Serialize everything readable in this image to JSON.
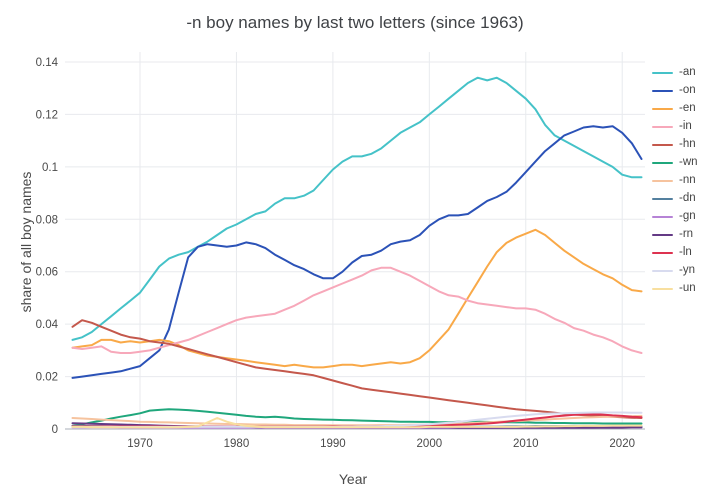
{
  "title": "-n boy names by last two letters (since 1963)",
  "chart_data": {
    "type": "line",
    "title": "-n boy names by last two letters (since 1963)",
    "xlabel": "Year",
    "ylabel": "share of all boy names",
    "xlim": [
      1963,
      2022
    ],
    "ylim": [
      0,
      0.14
    ],
    "start_year": 1963,
    "grid": true,
    "legend_position": "right",
    "background": "#ffffff",
    "grid_color": "#e8eaee",
    "zeroline_color": "#d4d7dc",
    "tick_color": "#4a4a4a",
    "x_ticks": [
      {
        "v": 1970,
        "label": "1970"
      },
      {
        "v": 1980,
        "label": "1980"
      },
      {
        "v": 1990,
        "label": "1990"
      },
      {
        "v": 2000,
        "label": "2000"
      },
      {
        "v": 2010,
        "label": "2010"
      },
      {
        "v": 2020,
        "label": "2020"
      }
    ],
    "y_ticks": [
      {
        "v": 0,
        "label": "0"
      },
      {
        "v": 0.02,
        "label": "0.02"
      },
      {
        "v": 0.04,
        "label": "0.04"
      },
      {
        "v": 0.06,
        "label": "0.06"
      },
      {
        "v": 0.08,
        "label": "0.08"
      },
      {
        "v": 0.1,
        "label": "0.1"
      },
      {
        "v": 0.12,
        "label": "0.12"
      },
      {
        "v": 0.14,
        "label": "0.14"
      }
    ],
    "series": [
      {
        "name": "-an",
        "color": "#45c2c8",
        "values": [
          0.034,
          0.035,
          0.037,
          0.04,
          0.043,
          0.046,
          0.049,
          0.052,
          0.057,
          0.062,
          0.065,
          0.0665,
          0.0675,
          0.0695,
          0.0715,
          0.074,
          0.0765,
          0.078,
          0.08,
          0.082,
          0.083,
          0.086,
          0.088,
          0.088,
          0.089,
          0.091,
          0.095,
          0.099,
          0.102,
          0.104,
          0.104,
          0.105,
          0.107,
          0.11,
          0.113,
          0.115,
          0.117,
          0.12,
          0.123,
          0.126,
          0.129,
          0.132,
          0.134,
          0.133,
          0.134,
          0.132,
          0.129,
          0.126,
          0.122,
          0.116,
          0.112,
          0.11,
          0.108,
          0.106,
          0.104,
          0.102,
          0.1,
          0.097,
          0.096,
          0.096
        ]
      },
      {
        "name": "-on",
        "color": "#2b52b7",
        "values": [
          0.0195,
          0.02,
          0.0205,
          0.021,
          0.0215,
          0.022,
          0.023,
          0.024,
          0.027,
          0.03,
          0.038,
          0.052,
          0.0655,
          0.0695,
          0.0705,
          0.07,
          0.0695,
          0.07,
          0.0712,
          0.0705,
          0.069,
          0.0665,
          0.0645,
          0.0625,
          0.061,
          0.059,
          0.0575,
          0.0575,
          0.06,
          0.0635,
          0.066,
          0.0665,
          0.068,
          0.0705,
          0.0715,
          0.072,
          0.074,
          0.0775,
          0.08,
          0.0815,
          0.0815,
          0.082,
          0.0845,
          0.087,
          0.0885,
          0.0905,
          0.094,
          0.098,
          0.102,
          0.106,
          0.109,
          0.112,
          0.1135,
          0.115,
          0.1155,
          0.115,
          0.1155,
          0.113,
          0.109,
          0.103
        ]
      },
      {
        "name": "-en",
        "color": "#f9a948",
        "values": [
          0.031,
          0.0315,
          0.032,
          0.034,
          0.034,
          0.033,
          0.0335,
          0.033,
          0.0335,
          0.034,
          0.0335,
          0.032,
          0.03,
          0.029,
          0.028,
          0.0275,
          0.027,
          0.0265,
          0.026,
          0.0255,
          0.025,
          0.0245,
          0.024,
          0.0245,
          0.024,
          0.0235,
          0.0235,
          0.024,
          0.0245,
          0.0245,
          0.024,
          0.0245,
          0.025,
          0.0255,
          0.025,
          0.0255,
          0.027,
          0.03,
          0.034,
          0.038,
          0.044,
          0.05,
          0.056,
          0.062,
          0.0675,
          0.071,
          0.073,
          0.0745,
          0.076,
          0.074,
          0.071,
          0.068,
          0.0655,
          0.063,
          0.061,
          0.059,
          0.0575,
          0.055,
          0.053,
          0.0525
        ]
      },
      {
        "name": "-in",
        "color": "#f7a8ba",
        "values": [
          0.031,
          0.0305,
          0.031,
          0.0315,
          0.0295,
          0.029,
          0.029,
          0.0295,
          0.03,
          0.031,
          0.032,
          0.033,
          0.034,
          0.0355,
          0.037,
          0.0385,
          0.04,
          0.0415,
          0.0425,
          0.043,
          0.0435,
          0.044,
          0.0455,
          0.047,
          0.049,
          0.051,
          0.0525,
          0.054,
          0.0555,
          0.057,
          0.0585,
          0.0605,
          0.0615,
          0.0615,
          0.06,
          0.0585,
          0.0565,
          0.0545,
          0.0525,
          0.051,
          0.0505,
          0.049,
          0.048,
          0.0475,
          0.047,
          0.0465,
          0.046,
          0.046,
          0.0455,
          0.044,
          0.042,
          0.0405,
          0.0385,
          0.0375,
          0.036,
          0.035,
          0.0335,
          0.0315,
          0.03,
          0.029
        ]
      },
      {
        "name": "-hn",
        "color": "#c4584c",
        "values": [
          0.039,
          0.0415,
          0.0405,
          0.039,
          0.0375,
          0.036,
          0.035,
          0.0345,
          0.0335,
          0.033,
          0.0325,
          0.0315,
          0.0305,
          0.0295,
          0.0285,
          0.0275,
          0.0265,
          0.0255,
          0.0245,
          0.0235,
          0.023,
          0.0225,
          0.022,
          0.0215,
          0.021,
          0.0205,
          0.0195,
          0.0185,
          0.0175,
          0.0165,
          0.0155,
          0.015,
          0.0145,
          0.014,
          0.0135,
          0.013,
          0.0125,
          0.012,
          0.0115,
          0.011,
          0.0105,
          0.01,
          0.0095,
          0.009,
          0.0085,
          0.008,
          0.0075,
          0.0072,
          0.0069,
          0.0066,
          0.0062,
          0.0058,
          0.0055,
          0.0053,
          0.0051,
          0.0049,
          0.0047,
          0.0045,
          0.0043,
          0.0042
        ]
      },
      {
        "name": "-wn",
        "color": "#1fa77c",
        "values": [
          0.0012,
          0.0018,
          0.0025,
          0.0032,
          0.004,
          0.0047,
          0.0053,
          0.006,
          0.007,
          0.0073,
          0.0075,
          0.0074,
          0.0072,
          0.0069,
          0.0066,
          0.0062,
          0.0058,
          0.0054,
          0.005,
          0.0047,
          0.0045,
          0.0047,
          0.0044,
          0.004,
          0.0038,
          0.0037,
          0.0036,
          0.0035,
          0.0034,
          0.0033,
          0.0032,
          0.0031,
          0.003,
          0.0029,
          0.0028,
          0.0028,
          0.0027,
          0.0027,
          0.0026,
          0.0026,
          0.0028,
          0.0029,
          0.0028,
          0.0027,
          0.0026,
          0.0026,
          0.0025,
          0.0025,
          0.0024,
          0.0024,
          0.0023,
          0.0023,
          0.0022,
          0.0022,
          0.0022,
          0.0021,
          0.0021,
          0.0021,
          0.0021,
          0.0021
        ]
      },
      {
        "name": "-nn",
        "color": "#f6c39e",
        "values": [
          0.0042,
          0.004,
          0.0038,
          0.0036,
          0.0034,
          0.0032,
          0.003,
          0.0028,
          0.0027,
          0.0026,
          0.0025,
          0.0024,
          0.0023,
          0.0022,
          0.0021,
          0.002,
          0.0019,
          0.0019,
          0.0018,
          0.0017,
          0.0017,
          0.0016,
          0.0016,
          0.0015,
          0.0015,
          0.0015,
          0.0015,
          0.0014,
          0.0014,
          0.0014,
          0.0014,
          0.0014,
          0.0015,
          0.0015,
          0.0015,
          0.0016,
          0.0016,
          0.0017,
          0.0018,
          0.0019,
          0.002,
          0.0022,
          0.0024,
          0.0026,
          0.0027,
          0.0029,
          0.003,
          0.0032,
          0.0034,
          0.0036,
          0.0038,
          0.004,
          0.0042,
          0.0044,
          0.0045,
          0.0046,
          0.0047,
          0.0048,
          0.0049,
          0.005
        ]
      },
      {
        "name": "-dn",
        "color": "#54809f",
        "values": [
          0.0012,
          0.0012,
          0.0011,
          0.0011,
          0.001,
          0.001,
          0.001,
          0.001,
          0.0009,
          0.0009,
          0.0009,
          0.0009,
          0.0009,
          0.0009,
          0.0008,
          0.0008,
          0.0008,
          0.0008,
          0.0008,
          0.0008,
          0.0008,
          0.0008,
          0.0008,
          0.0008,
          0.0008,
          0.0008,
          0.0008,
          0.0008,
          0.0008,
          0.0008,
          0.0008,
          0.0008,
          0.0008,
          0.0008,
          0.0008,
          0.0008,
          0.0008,
          0.0008,
          0.0008,
          0.0008,
          0.0008,
          0.0008,
          0.0009,
          0.0009,
          0.0009,
          0.001,
          0.001,
          0.001,
          0.0011,
          0.0011,
          0.0011,
          0.0011,
          0.0011,
          0.001,
          0.001,
          0.001,
          0.001,
          0.001,
          0.001,
          0.001
        ]
      },
      {
        "name": "-gn",
        "color": "#b683d6",
        "values": [
          0.0006,
          0.0006,
          0.0006,
          0.0006,
          0.0006,
          0.0005,
          0.0005,
          0.0005,
          0.0005,
          0.0005,
          0.0005,
          0.0005,
          0.0005,
          0.0005,
          0.0005,
          0.0005,
          0.0005,
          0.0005,
          0.0005,
          0.0005,
          0.0004,
          0.0004,
          0.0004,
          0.0004,
          0.0004,
          0.0004,
          0.0004,
          0.0004,
          0.0004,
          0.0004,
          0.0004,
          0.0004,
          0.0004,
          0.0004,
          0.0004,
          0.0004,
          0.0004,
          0.0004,
          0.0004,
          0.0004,
          0.0004,
          0.0004,
          0.0004,
          0.0004,
          0.0004,
          0.0005,
          0.0005,
          0.0005,
          0.0005,
          0.0005,
          0.0005,
          0.0005,
          0.0005,
          0.0005,
          0.0005,
          0.0006,
          0.0006,
          0.0006,
          0.0006,
          0.0006
        ]
      },
      {
        "name": "-rn",
        "color": "#643a85",
        "values": [
          0.0022,
          0.0021,
          0.002,
          0.0019,
          0.0018,
          0.0017,
          0.0016,
          0.0015,
          0.0014,
          0.0013,
          0.0012,
          0.0011,
          0.001,
          0.001,
          0.0009,
          0.0009,
          0.0008,
          0.0008,
          0.0008,
          0.0007,
          0.0007,
          0.0007,
          0.0007,
          0.0007,
          0.0007,
          0.0007,
          0.0007,
          0.0007,
          0.0007,
          0.0007,
          0.0006,
          0.0006,
          0.0006,
          0.0006,
          0.0006,
          0.0006,
          0.0006,
          0.0006,
          0.0006,
          0.0006,
          0.0005,
          0.0005,
          0.0005,
          0.0005,
          0.0005,
          0.0005,
          0.0005,
          0.0005,
          0.0005,
          0.0005,
          0.0005,
          0.0005,
          0.0005,
          0.0005,
          0.0005,
          0.0005,
          0.0005,
          0.0005,
          0.0006,
          0.0006
        ]
      },
      {
        "name": "-ln",
        "color": "#dd3250",
        "values": [
          0.001,
          0.001,
          0.001,
          0.001,
          0.001,
          0.001,
          0.001,
          0.001,
          0.001,
          0.001,
          0.0009,
          0.0009,
          0.0009,
          0.0009,
          0.0009,
          0.0009,
          0.0009,
          0.0009,
          0.0009,
          0.0009,
          0.0009,
          0.0009,
          0.0009,
          0.0009,
          0.0009,
          0.0009,
          0.0009,
          0.001,
          0.001,
          0.001,
          0.001,
          0.001,
          0.0011,
          0.0011,
          0.0011,
          0.0012,
          0.0012,
          0.0013,
          0.0013,
          0.0015,
          0.0016,
          0.0017,
          0.0019,
          0.0021,
          0.0024,
          0.0028,
          0.0032,
          0.0036,
          0.004,
          0.0044,
          0.0048,
          0.0051,
          0.0054,
          0.0056,
          0.0057,
          0.0055,
          0.0052,
          0.005,
          0.0047,
          0.0045
        ]
      },
      {
        "name": "-yn",
        "color": "#d8dbef",
        "values": [
          0.0008,
          0.0008,
          0.0008,
          0.0008,
          0.0008,
          0.0008,
          0.0008,
          0.0008,
          0.0008,
          0.0008,
          0.0008,
          0.0008,
          0.0008,
          0.0008,
          0.0008,
          0.0008,
          0.0008,
          0.0008,
          0.0008,
          0.0008,
          0.0008,
          0.0008,
          0.0008,
          0.0008,
          0.0008,
          0.0008,
          0.0008,
          0.0008,
          0.0009,
          0.0009,
          0.001,
          0.001,
          0.0011,
          0.0012,
          0.0013,
          0.0014,
          0.0016,
          0.0018,
          0.0021,
          0.0024,
          0.0027,
          0.0031,
          0.0035,
          0.0039,
          0.0043,
          0.0047,
          0.005,
          0.0053,
          0.0056,
          0.0058,
          0.0059,
          0.006,
          0.0061,
          0.0062,
          0.0063,
          0.0063,
          0.0063,
          0.0063,
          0.0062,
          0.0062
        ]
      },
      {
        "name": "-un",
        "color": "#f8df9f",
        "values": [
          0.0008,
          0.0008,
          0.0007,
          0.0007,
          0.0007,
          0.0006,
          0.0006,
          0.0006,
          0.0006,
          0.0006,
          0.0006,
          0.0007,
          0.0008,
          0.001,
          0.0025,
          0.0042,
          0.0028,
          0.0018,
          0.0012,
          0.0009,
          0.0007,
          0.0007,
          0.0007,
          0.0007,
          0.0007,
          0.0007,
          0.0007,
          0.0007,
          0.0007,
          0.0007,
          0.0007,
          0.0007,
          0.0007,
          0.0007,
          0.0007,
          0.0007,
          0.0007,
          0.0008,
          0.0008,
          0.0008,
          0.0008,
          0.0008,
          0.0008,
          0.0008,
          0.0008,
          0.0008,
          0.0008,
          0.0009,
          0.0009,
          0.001,
          0.001,
          0.0011,
          0.0011,
          0.0012,
          0.0012,
          0.0012,
          0.0013,
          0.0013,
          0.0013,
          0.0013
        ]
      }
    ]
  }
}
